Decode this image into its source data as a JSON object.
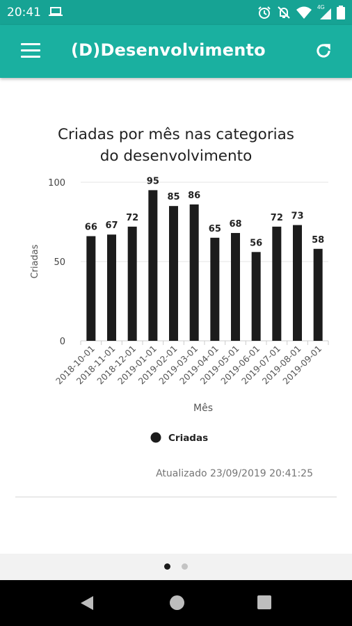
{
  "status_bar": {
    "time": "20:41",
    "icons": [
      "laptop-icon",
      "alarm-icon",
      "notifications-off-icon",
      "wifi-icon",
      "signal-4g-icon",
      "battery-icon"
    ],
    "network_label": "4G"
  },
  "app_bar": {
    "title": "(D)Desenvolvimento",
    "menu_icon": "hamburger-menu-icon",
    "refresh_icon": "refresh-icon",
    "color": "#1ab0a0"
  },
  "chart_data": {
    "type": "bar",
    "title": "Criadas por mês nas categorias do desenvolvimento",
    "title_lines": [
      "Criadas por mês nas categorias",
      "do desenvolvimento"
    ],
    "xlabel": "Mês",
    "ylabel": "Criadas",
    "ylim": [
      0,
      100
    ],
    "yticks": [
      0,
      50,
      100
    ],
    "categories": [
      "2018-10-01",
      "2018-11-01",
      "2018-12-01",
      "2019-01-01",
      "2019-02-01",
      "2019-03-01",
      "2019-04-01",
      "2019-05-01",
      "2019-06-01",
      "2019-07-01",
      "2019-08-01",
      "2019-09-01"
    ],
    "series": [
      {
        "name": "Criadas",
        "values": [
          66,
          67,
          72,
          95,
          85,
          86,
          65,
          68,
          56,
          72,
          73,
          58
        ],
        "color": "#1c1c1c"
      }
    ],
    "legend_position": "bottom",
    "grid": true
  },
  "updated_text": "Atualizado 23/09/2019 20:41:25",
  "pager": {
    "count": 2,
    "active_index": 0
  },
  "nav_bar": {
    "buttons": [
      "back-icon",
      "home-icon",
      "recents-icon"
    ]
  }
}
